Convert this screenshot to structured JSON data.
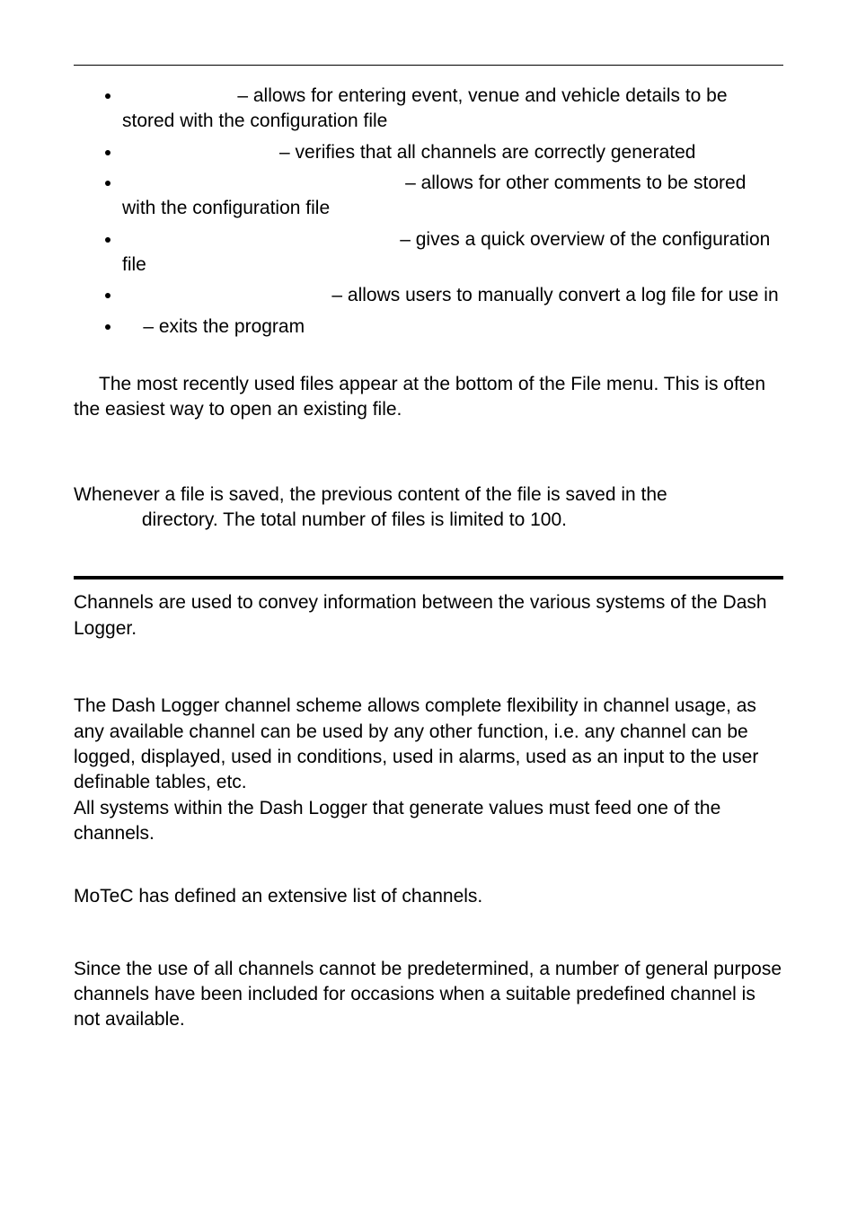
{
  "bullets": [
    {
      "lead_pad": "                      ",
      "text": "– allows for entering event, venue and vehicle details to be stored with the configuration file"
    },
    {
      "lead_pad": "                              ",
      "text": "– verifies that all channels are correctly generated"
    },
    {
      "lead_pad": "                                                      ",
      "text": "– allows for other comments to be stored with the configuration file"
    },
    {
      "lead_pad": "                                                     ",
      "text": "– gives a quick overview of the configuration file"
    },
    {
      "lead_pad": "                                        ",
      "text": "– allows users to manually convert a log file for use in"
    },
    {
      "lead_pad": "    ",
      "text": "– exits the program"
    }
  ],
  "tip": "The most recently used files appear at the bottom of the File menu. This is often the easiest way to open an existing file.",
  "backup_line1": "Whenever a file is saved, the previous content of the file is saved in the",
  "backup_line2_indent": "             ",
  "backup_line2": "directory. The total number of files is limited to 100.",
  "channels_intro": "Channels are used to convey information between the various systems of the Dash Logger.",
  "para_flex": "The Dash Logger channel scheme allows complete flexibility in channel usage, as any available channel can be used by any other function, i.e. any channel can be logged, displayed, used in conditions, used in alarms, used as an input to the user definable tables, etc.",
  "para_feed": "All systems within the Dash Logger that generate values must feed one of the channels.",
  "para_motec": "MoTeC has defined an extensive list of channels.",
  "para_general": "Since the use of all channels cannot be predetermined, a number of general purpose channels have been included for occasions when a suitable predefined channel is not available."
}
